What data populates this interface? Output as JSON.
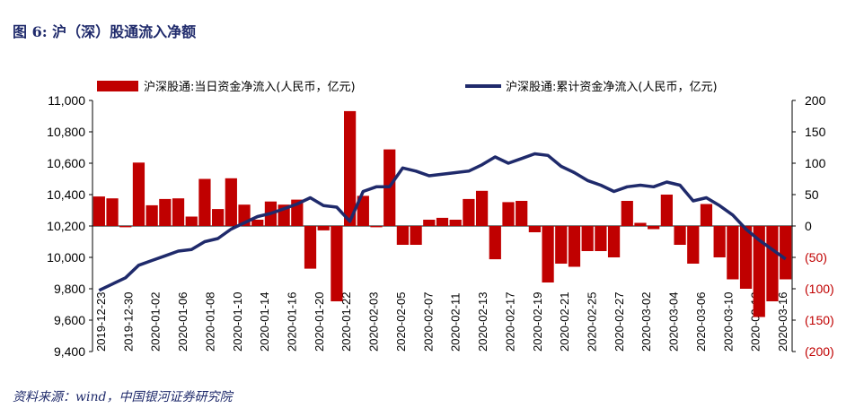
{
  "figure": {
    "title": "图 6:  沪（深）股通流入净额",
    "source": "资料来源：wind，中国银河证券研究院"
  },
  "chart_data": {
    "type": "bar+line",
    "title": "图 6:  沪（深）股通流入净额",
    "legend_position": "top",
    "grid": false,
    "colors": {
      "bar": "#c00000",
      "line": "#1f2a6b"
    },
    "series": [
      {
        "name": "沪深股通:当日资金净流入(人民币，亿元)",
        "type": "bar",
        "axis": "right",
        "values": [
          47,
          44,
          -2,
          101,
          33,
          43,
          44,
          15,
          75,
          27,
          76,
          34,
          10,
          39,
          34,
          42,
          -68,
          -7,
          -120,
          183,
          48,
          -2,
          122,
          -30,
          -30,
          10,
          13,
          10,
          43,
          56,
          -53,
          38,
          40,
          -10,
          -90,
          -60,
          -65,
          -40,
          -40,
          -50,
          40,
          5,
          -5,
          50,
          -30,
          -60,
          35,
          -50,
          -85,
          -100,
          -145,
          -120,
          -85
        ],
        "ylim": [
          -200,
          200
        ],
        "y_ticks": [
          "(200)",
          "(150)",
          "(100)",
          "(50)",
          "0",
          "50",
          "100",
          "150",
          "200"
        ]
      },
      {
        "name": "沪深股通:累计资金净流入(人民币，亿元)",
        "type": "line",
        "axis": "left",
        "values": [
          9790,
          9830,
          9870,
          9950,
          9980,
          10010,
          10040,
          10050,
          10100,
          10120,
          10180,
          10220,
          10260,
          10280,
          10310,
          10340,
          10380,
          10330,
          10320,
          10230,
          10420,
          10450,
          10450,
          10570,
          10550,
          10520,
          10530,
          10540,
          10550,
          10590,
          10640,
          10600,
          10630,
          10660,
          10650,
          10580,
          10540,
          10490,
          10460,
          10420,
          10450,
          10460,
          10450,
          10480,
          10460,
          10360,
          10380,
          10330,
          10270,
          10180,
          10110,
          10050,
          9990
        ],
        "ylim": [
          9400,
          11000
        ],
        "y_ticks": [
          "9,400",
          "9,600",
          "9,800",
          "10,000",
          "10,200",
          "10,400",
          "10,600",
          "10,800",
          "11,000"
        ]
      }
    ],
    "x_tick_labels": [
      "2019-12-23",
      "2019-12-30",
      "2020-01-02",
      "2020-01-06",
      "2020-01-08",
      "2020-01-10",
      "2020-01-14",
      "2020-01-16",
      "2020-01-20",
      "2020-01-22",
      "2020-02-03",
      "2020-02-05",
      "2020-02-07",
      "2020-02-11",
      "2020-02-13",
      "2020-02-17",
      "2020-02-19",
      "2020-02-21",
      "2020-02-25",
      "2020-02-27",
      "2020-03-02",
      "2020-03-04",
      "2020-03-06",
      "2020-03-10",
      "2020-03-12",
      "2020-03-16"
    ]
  }
}
